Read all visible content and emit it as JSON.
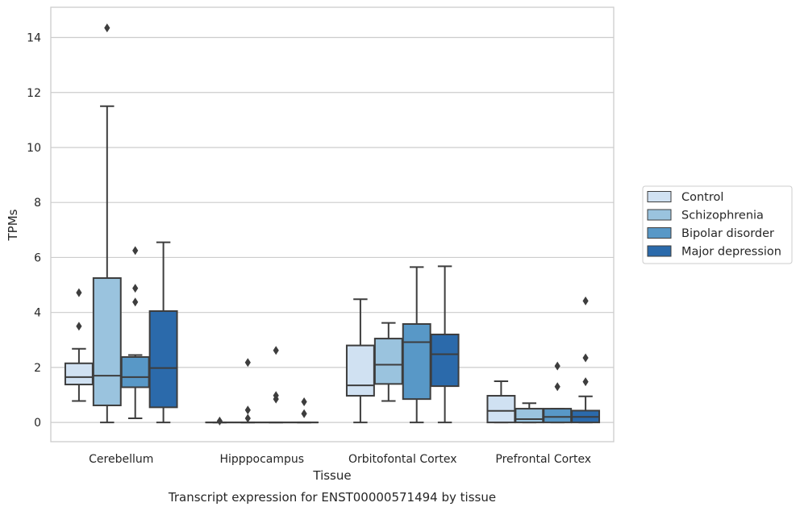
{
  "chart_data": {
    "type": "box",
    "title": "Transcript expression for ENST00000571494 by tissue",
    "xlabel": "Tissue",
    "ylabel": "TPMs",
    "ylim": [
      -0.7,
      15.1
    ],
    "yticks": [
      0,
      2,
      4,
      6,
      8,
      10,
      12,
      14
    ],
    "grid": true,
    "legend_position": "right",
    "categories": [
      "Cerebellum",
      "Hipppocampus",
      "Orbitofontal Cortex",
      "Prefrontal Cortex"
    ],
    "series": [
      {
        "name": "Control",
        "color": "#d0e1f2",
        "boxes": [
          {
            "q1": 1.38,
            "median": 1.65,
            "q3": 2.15,
            "whisker_low": 0.78,
            "whisker_high": 2.68,
            "outliers": [
              3.5,
              4.72
            ]
          },
          {
            "q1": 0,
            "median": 0,
            "q3": 0,
            "whisker_low": 0,
            "whisker_high": 0,
            "outliers": [
              0.05
            ]
          },
          {
            "q1": 0.97,
            "median": 1.35,
            "q3": 2.8,
            "whisker_low": 0,
            "whisker_high": 4.48,
            "outliers": []
          },
          {
            "q1": 0,
            "median": 0.42,
            "q3": 0.97,
            "whisker_low": 0,
            "whisker_high": 1.5,
            "outliers": []
          }
        ]
      },
      {
        "name": "Schizophrenia",
        "color": "#9ac3de",
        "boxes": [
          {
            "q1": 0.62,
            "median": 1.7,
            "q3": 5.25,
            "whisker_low": 0,
            "whisker_high": 11.5,
            "outliers": [
              14.35
            ]
          },
          {
            "q1": 0,
            "median": 0,
            "q3": 0,
            "whisker_low": 0,
            "whisker_high": 0,
            "outliers": [
              0.15,
              0.45,
              2.18
            ]
          },
          {
            "q1": 1.4,
            "median": 2.1,
            "q3": 3.05,
            "whisker_low": 0.78,
            "whisker_high": 3.62,
            "outliers": []
          },
          {
            "q1": 0,
            "median": 0.12,
            "q3": 0.5,
            "whisker_low": 0,
            "whisker_high": 0.7,
            "outliers": []
          }
        ]
      },
      {
        "name": "Bipolar disorder",
        "color": "#5898c7",
        "boxes": [
          {
            "q1": 1.28,
            "median": 1.65,
            "q3": 2.38,
            "whisker_low": 0.15,
            "whisker_high": 2.45,
            "outliers": [
              4.38,
              4.88,
              6.25
            ]
          },
          {
            "q1": 0,
            "median": 0,
            "q3": 0,
            "whisker_low": 0,
            "whisker_high": 0,
            "outliers": [
              0.85,
              0.98,
              2.62
            ]
          },
          {
            "q1": 0.85,
            "median": 2.92,
            "q3": 3.58,
            "whisker_low": 0,
            "whisker_high": 5.65,
            "outliers": []
          },
          {
            "q1": 0,
            "median": 0.2,
            "q3": 0.5,
            "whisker_low": 0,
            "whisker_high": 0.5,
            "outliers": [
              1.3,
              2.05
            ]
          }
        ]
      },
      {
        "name": "Major depression",
        "color": "#2b6aab",
        "boxes": [
          {
            "q1": 0.55,
            "median": 1.98,
            "q3": 4.05,
            "whisker_low": 0,
            "whisker_high": 6.55,
            "outliers": []
          },
          {
            "q1": 0,
            "median": 0,
            "q3": 0,
            "whisker_low": 0,
            "whisker_high": 0,
            "outliers": [
              0.32,
              0.75
            ]
          },
          {
            "q1": 1.32,
            "median": 2.48,
            "q3": 3.2,
            "whisker_low": 0,
            "whisker_high": 5.68,
            "outliers": []
          },
          {
            "q1": 0,
            "median": 0.2,
            "q3": 0.43,
            "whisker_low": 0,
            "whisker_high": 0.95,
            "outliers": [
              1.48,
              2.35,
              4.42
            ]
          }
        ]
      }
    ]
  }
}
